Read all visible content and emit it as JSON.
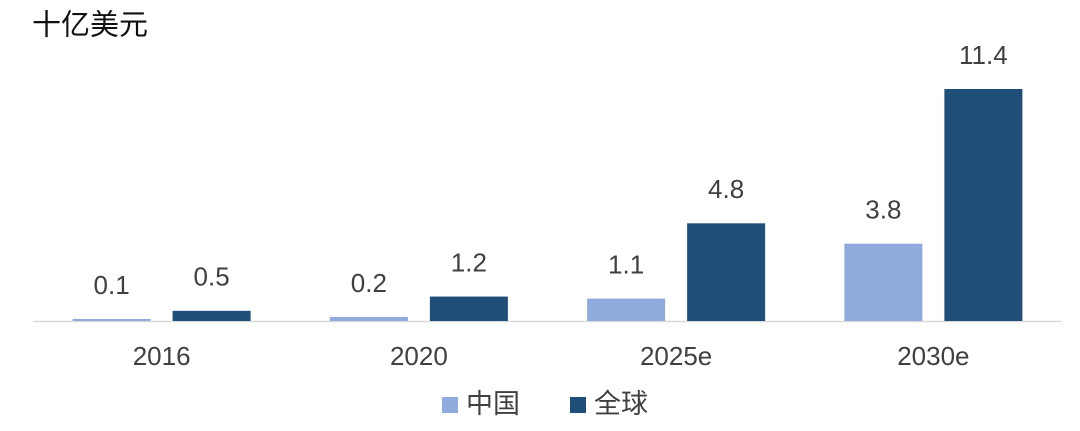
{
  "chart_data": {
    "type": "bar",
    "title": "十亿美元",
    "categories": [
      "2016",
      "2020",
      "2025e",
      "2030e"
    ],
    "series": [
      {
        "name": "中国",
        "color": "#8faadc",
        "values": [
          0.1,
          0.2,
          1.1,
          3.8
        ]
      },
      {
        "name": "全球",
        "color": "#1f4e79",
        "values": [
          0.5,
          1.2,
          4.8,
          11.4
        ]
      }
    ],
    "legend": "bottom"
  }
}
